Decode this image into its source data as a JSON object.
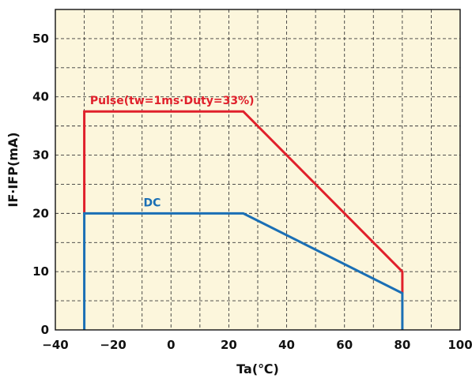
{
  "chart_data": {
    "type": "line",
    "title": "",
    "xlabel": "Ta(℃)",
    "ylabel": "IF·IFP(mA)",
    "xlim": [
      -40,
      100
    ],
    "ylim": [
      0,
      55
    ],
    "x_ticks": [
      -40,
      -20,
      0,
      20,
      40,
      60,
      80,
      100
    ],
    "x_tick_labels": [
      "−40",
      "−20",
      "0",
      "20",
      "40",
      "60",
      "80",
      "100"
    ],
    "y_ticks": [
      0,
      10,
      20,
      30,
      40,
      50
    ],
    "y_tick_labels": [
      "0",
      "10",
      "20",
      "30",
      "40",
      "50"
    ],
    "grid": true,
    "grid_style": "dashed",
    "background": "#fcf6dc",
    "series": [
      {
        "name": "Pulse(tw=1ms·Duty=33%)",
        "color": "#e0202b",
        "points": [
          [
            -30,
            20
          ],
          [
            -30,
            37.5
          ],
          [
            25,
            37.5
          ],
          [
            80,
            10
          ],
          [
            80,
            6.3
          ]
        ]
      },
      {
        "name": "DC",
        "color": "#1a6fb5",
        "points": [
          [
            -30,
            0
          ],
          [
            -30,
            20
          ],
          [
            25,
            20
          ],
          [
            80,
            6.3
          ],
          [
            80,
            0
          ]
        ]
      }
    ]
  }
}
